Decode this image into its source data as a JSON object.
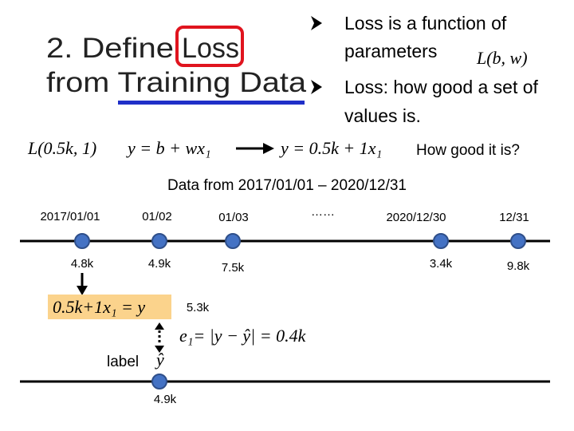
{
  "title": {
    "line1": [
      "2. Define",
      "Loss"
    ],
    "line2": "from Training Data"
  },
  "bullets": [
    {
      "lines": [
        "Loss is a function of",
        "parameters"
      ],
      "formula": "L(b, w)"
    },
    {
      "lines": [
        "Loss: how good a set of",
        "values is."
      ]
    }
  ],
  "model_row": {
    "loss": "L(0.5k, 1)",
    "model": "y = b + wx₁",
    "instance": "y = 0.5k + 1x₁",
    "question": "How good it is?"
  },
  "data_range": "Data from 2017/01/01 – 2020/12/31",
  "timeline": {
    "points": [
      {
        "date": "2017/01/01",
        "value": "4.8k"
      },
      {
        "date": "01/02",
        "value": "4.9k"
      },
      {
        "date": "01/03",
        "value": "7.5k"
      },
      {
        "date": "2020/12/30",
        "value": "3.4k"
      },
      {
        "date": "12/31",
        "value": "9.8k"
      }
    ],
    "ellipsis": "……"
  },
  "prediction": {
    "equation": "0.5k+1x₁ = y",
    "output": "5.3k",
    "error": "e₁= |y − ŷ| = 0.4k",
    "label": "label",
    "label_symbol": "ŷ",
    "label_value": "4.9k"
  }
}
